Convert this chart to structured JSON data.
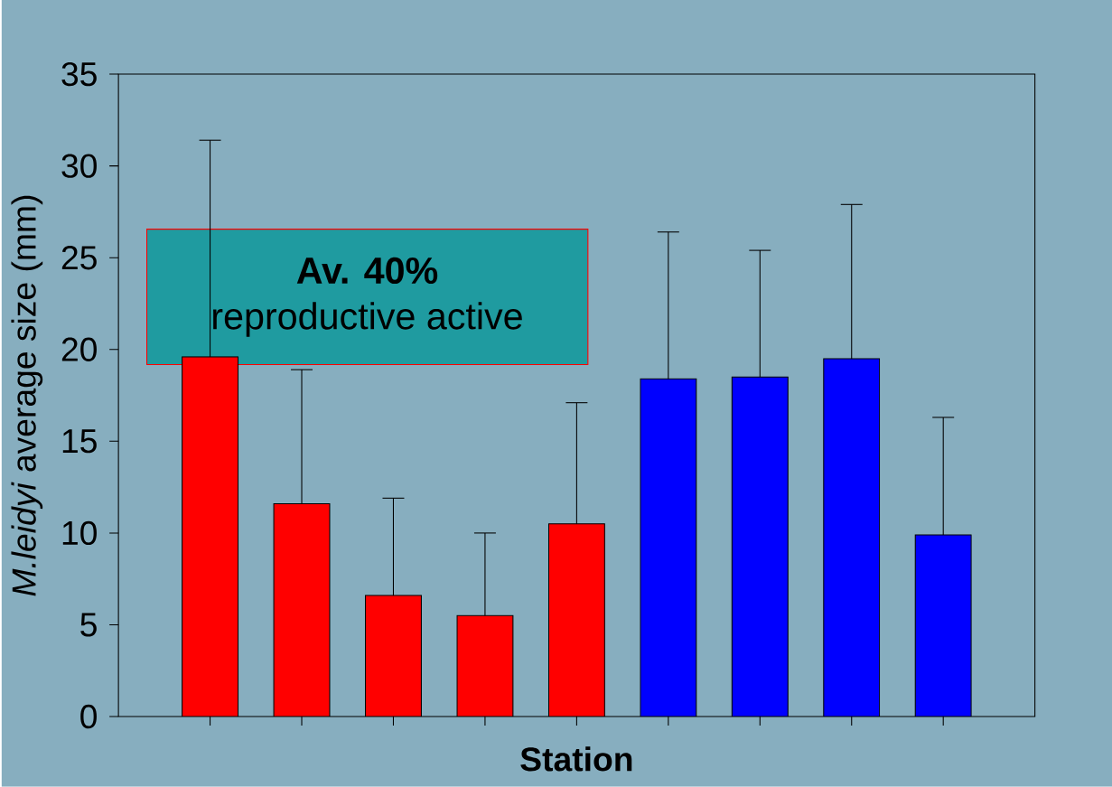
{
  "chart_data": {
    "type": "bar",
    "ylabel": "*M.leidyi* average size (mm)",
    "xlabel": "Station",
    "annotations": [
      "**Av. 40%**",
      "reproductive active"
    ],
    "categories": [
      null,
      null,
      null,
      null,
      null,
      null,
      null,
      null,
      null
    ],
    "values": [
      19.6,
      11.6,
      6.6,
      5.5,
      10.5,
      18.4,
      18.5,
      19.5,
      9.9
    ],
    "colors": [
      "#ff0000",
      "#ff0000",
      "#ff0000",
      "#ff0000",
      "#ff0000",
      "#0000ff",
      "#0000ff",
      "#0000ff",
      "#0000ff"
    ],
    "errors": [
      [
        19.6,
        31.4
      ],
      [
        11.6,
        18.9
      ],
      [
        6.6,
        11.9
      ],
      [
        5.5,
        10.0
      ],
      [
        10.5,
        17.1
      ],
      [
        18.4,
        26.4
      ],
      [
        18.5,
        25.4
      ],
      [
        19.5,
        27.9
      ],
      [
        9.9,
        16.3
      ]
    ],
    "ylim": [
      0,
      35
    ],
    "yticks": [
      0,
      5,
      10,
      15,
      20,
      25,
      30,
      35
    ],
    "grid": false
  }
}
